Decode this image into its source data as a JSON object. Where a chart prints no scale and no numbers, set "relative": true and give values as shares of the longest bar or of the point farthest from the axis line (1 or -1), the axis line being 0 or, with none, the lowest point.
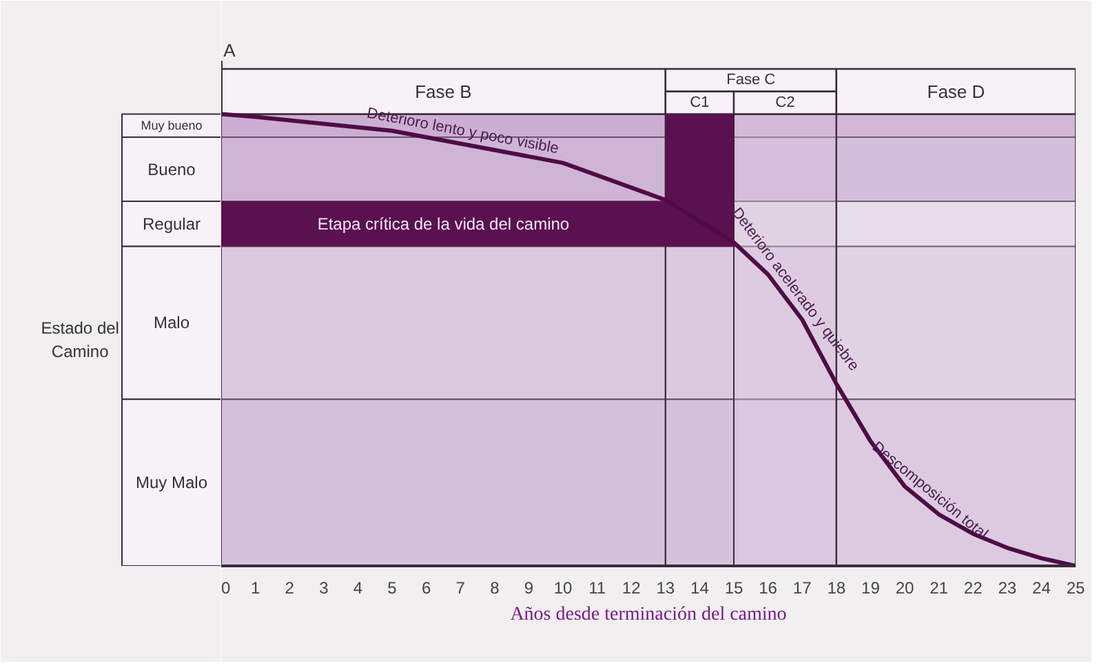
{
  "chart_data": {
    "type": "line",
    "relative": true,
    "xlabel": "Años desde terminación del camino",
    "x": [
      0,
      1,
      5,
      10,
      13,
      15,
      16,
      17,
      18,
      19,
      20,
      21,
      22,
      23,
      24,
      25
    ],
    "series": [
      {
        "color": "#4e0c45",
        "values": [
          1.0,
          0.994,
          0.963,
          0.892,
          0.81,
          0.716,
          0.645,
          0.545,
          0.403,
          0.276,
          0.176,
          0.114,
          0.071,
          0.04,
          0.017,
          0.0
        ]
      }
    ],
    "xlim": [
      0,
      25
    ],
    "xticks": [
      0,
      1,
      2,
      3,
      4,
      5,
      6,
      7,
      8,
      9,
      10,
      11,
      12,
      13,
      14,
      15,
      16,
      17,
      18,
      19,
      20,
      21,
      22,
      23,
      24,
      25
    ],
    "marker": "none",
    "line_style": "solid",
    "grid": false,
    "bands": [
      {
        "axis": "y",
        "from": 0.949,
        "to": 1.0,
        "label": "Muy bueno",
        "color": "#b98fc2"
      },
      {
        "axis": "y",
        "from": 0.807,
        "to": 0.949,
        "label": "Bueno",
        "color": "#c3a0cb"
      },
      {
        "axis": "y",
        "from": 0.707,
        "to": 0.807,
        "label": "Regular",
        "color": "#5b1050"
      },
      {
        "axis": "y",
        "from": 0.369,
        "to": 0.707,
        "label": "Malo",
        "color": "#e3d2e6"
      },
      {
        "axis": "y",
        "from": 0.0,
        "to": 0.369,
        "label": "Muy Malo",
        "color": "#d6bfdc"
      },
      {
        "axis": "x",
        "from": 0,
        "to": 13,
        "label": "Fase B"
      },
      {
        "axis": "x",
        "from": 13,
        "to": 18,
        "label": "Fase C"
      },
      {
        "axis": "x",
        "from": 13,
        "to": 15,
        "label": "C1",
        "color": "#5b1050"
      },
      {
        "axis": "x",
        "from": 15,
        "to": 18,
        "label": "C2",
        "color": "#e3d2e6"
      },
      {
        "axis": "x",
        "from": 18,
        "to": 25,
        "label": "Fase D",
        "color": "#d4bedb"
      }
    ],
    "annotations": [
      {
        "text": "A",
        "x": 0,
        "y": 1.0
      },
      "Etapa crítica de la vida del camino",
      {
        "text": "Deterioro lento y poco visible",
        "x": 7,
        "y": 0.935
      },
      {
        "text": "Deterioro acelerado y quiebre",
        "x": 16.5,
        "y": 0.595
      },
      {
        "text": "Descomposición total",
        "x": 20.5,
        "y": 0.145
      },
      "Estado del Camino"
    ]
  }
}
